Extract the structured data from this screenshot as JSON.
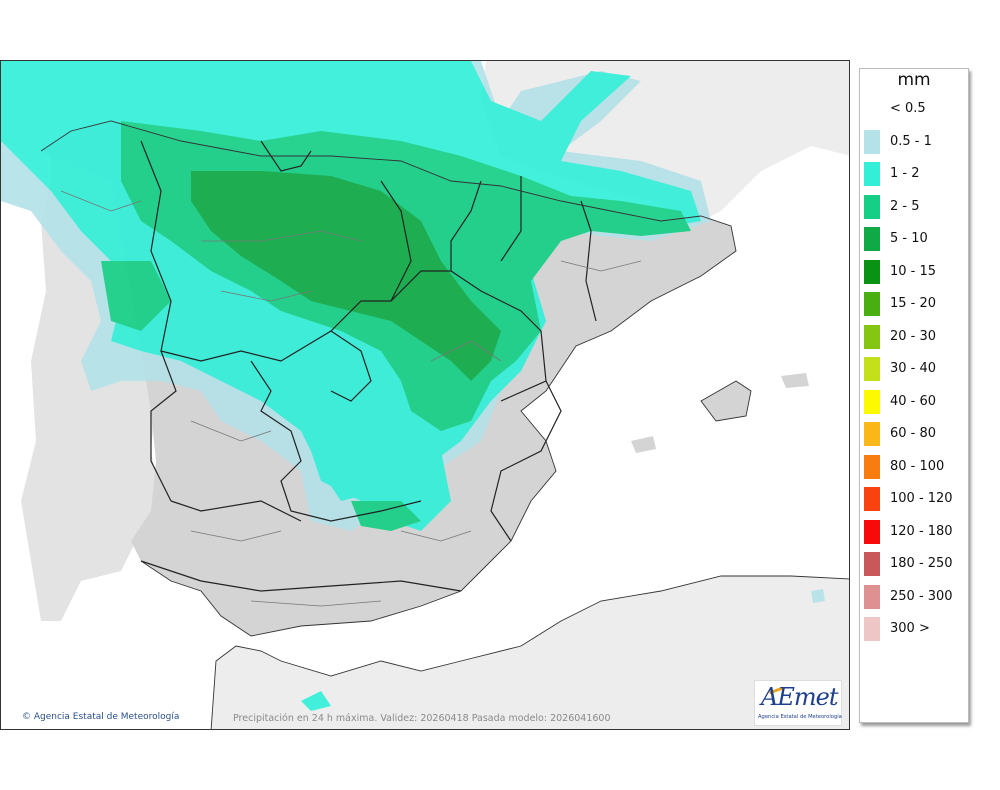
{
  "legend": {
    "title": "mm",
    "items": [
      {
        "label": "< 0.5",
        "color": ""
      },
      {
        "label": "0.5 - 1",
        "color": "#b4e2e8"
      },
      {
        "label": "1 - 2",
        "color": "#33efd8"
      },
      {
        "label": "2 - 5",
        "color": "#16cf86"
      },
      {
        "label": "5 - 10",
        "color": "#0faa45"
      },
      {
        "label": "10 - 15",
        "color": "#0a9214"
      },
      {
        "label": "15 - 20",
        "color": "#48ae12"
      },
      {
        "label": "20 - 30",
        "color": "#84c612"
      },
      {
        "label": "30 - 40",
        "color": "#c3e01a"
      },
      {
        "label": "40 - 60",
        "color": "#fdfa00"
      },
      {
        "label": "60 - 80",
        "color": "#fbb718"
      },
      {
        "label": "80 - 100",
        "color": "#f87c10"
      },
      {
        "label": "100 - 120",
        "color": "#f94210"
      },
      {
        "label": "120 - 180",
        "color": "#f80a0a"
      },
      {
        "label": "180 - 250",
        "color": "#c8585a"
      },
      {
        "label": "250 - 300",
        "color": "#de9092"
      },
      {
        "label": "300 >",
        "color": "#efc6c6"
      }
    ]
  },
  "footer": {
    "copyright": "Agencia Estatal de Meteorología",
    "caption": "Precipitación en 24 h máxima. Validez: 20260418 Pasada modelo: 2026041600"
  },
  "logo": {
    "word": "AEmet",
    "subtitle": "Agencia Estatal de Meteorología"
  },
  "colors": {
    "sea": "#ffffff",
    "land": "#d4d4d4",
    "outside": "#ededed",
    "border": "#222222"
  }
}
